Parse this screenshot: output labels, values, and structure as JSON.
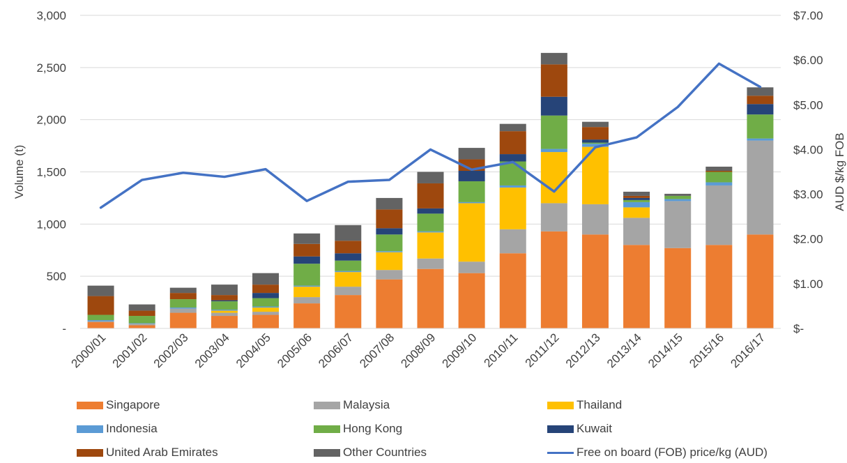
{
  "chart_data": {
    "type": "bar",
    "stacked": true,
    "categories": [
      "2000/01",
      "2001/02",
      "2002/03",
      "2003/04",
      "2004/05",
      "2005/06",
      "2006/07",
      "2007/08",
      "2008/09",
      "2009/10",
      "2010/11",
      "2011/12",
      "2012/13",
      "2013/14",
      "2014/15",
      "2015/16",
      "2016/17"
    ],
    "ylabel": "Volume (t)",
    "y2label": "AUD $/kg  FOB",
    "ylim": [
      0,
      3000
    ],
    "y2lim": [
      0,
      7
    ],
    "yticks": [
      "-",
      "500",
      "1,000",
      "1,500",
      "2,000",
      "2,500",
      "3,000"
    ],
    "y2ticks": [
      "$-",
      "$1.00",
      "$2.00",
      "$3.00",
      "$4.00",
      "$5.00",
      "$6.00",
      "$7.00"
    ],
    "grid": true,
    "legend_position": "bottom",
    "series": [
      {
        "name": "Singapore",
        "color": "#ED7D31",
        "values": [
          60,
          30,
          150,
          120,
          130,
          240,
          320,
          470,
          570,
          530,
          720,
          930,
          900,
          800,
          770,
          800,
          900
        ]
      },
      {
        "name": "Malaysia",
        "color": "#A5A5A5",
        "values": [
          10,
          15,
          40,
          30,
          30,
          60,
          80,
          90,
          100,
          110,
          230,
          270,
          290,
          260,
          450,
          570,
          900
        ]
      },
      {
        "name": "Thailand",
        "color": "#FFC000",
        "values": [
          0,
          0,
          0,
          20,
          40,
          100,
          140,
          170,
          250,
          560,
          400,
          490,
          550,
          100,
          0,
          0,
          0
        ]
      },
      {
        "name": "Indonesia",
        "color": "#5B9BD5",
        "values": [
          10,
          5,
          10,
          10,
          10,
          10,
          10,
          10,
          10,
          10,
          20,
          30,
          30,
          50,
          20,
          30,
          20
        ]
      },
      {
        "name": "Hong Kong",
        "color": "#70AD47",
        "values": [
          50,
          70,
          80,
          80,
          80,
          210,
          100,
          160,
          170,
          200,
          230,
          320,
          10,
          20,
          30,
          100,
          230
        ]
      },
      {
        "name": "Kuwait",
        "color": "#264478",
        "values": [
          0,
          0,
          0,
          10,
          50,
          70,
          70,
          60,
          50,
          100,
          70,
          180,
          30,
          20,
          0,
          0,
          100
        ]
      },
      {
        "name": "United Arab Emirates",
        "color": "#9E480E",
        "values": [
          180,
          50,
          60,
          50,
          80,
          120,
          120,
          180,
          240,
          110,
          220,
          310,
          120,
          20,
          0,
          10,
          80
        ]
      },
      {
        "name": "Other Countries",
        "color": "#636363",
        "values": [
          100,
          60,
          50,
          100,
          110,
          100,
          150,
          110,
          110,
          110,
          70,
          110,
          50,
          40,
          20,
          40,
          80
        ]
      }
    ],
    "line_series": {
      "name": "Free on board (FOB) price/kg (AUD)",
      "color": "#4472C4",
      "axis": "right",
      "values": [
        2.7,
        3.32,
        3.48,
        3.39,
        3.56,
        2.85,
        3.28,
        3.32,
        4.0,
        3.55,
        3.72,
        3.06,
        4.05,
        4.27,
        4.95,
        5.92,
        5.4
      ]
    }
  }
}
